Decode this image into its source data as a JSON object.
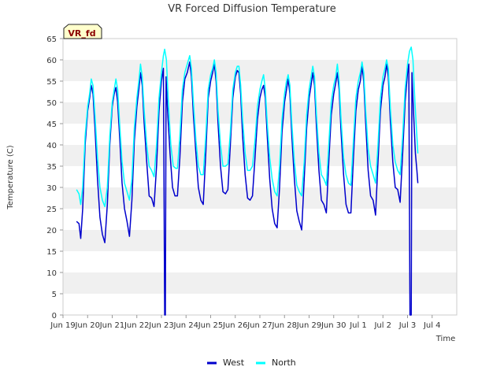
{
  "chart_data": {
    "type": "line",
    "title": "VR Forced Diffusion Temperature",
    "xlabel": "Time",
    "ylabel": "Temperature (C)",
    "badge": "VR_fd",
    "ylim": [
      0,
      65
    ],
    "xlim": [
      0,
      16
    ],
    "y_ticks": [
      0,
      5,
      10,
      15,
      20,
      25,
      30,
      35,
      40,
      45,
      50,
      55,
      60,
      65
    ],
    "x_ticks": [
      {
        "pos": 0,
        "label": "Jun 19"
      },
      {
        "pos": 1,
        "label": "Jun 20"
      },
      {
        "pos": 2,
        "label": "Jun 21"
      },
      {
        "pos": 3,
        "label": "Jun 22"
      },
      {
        "pos": 4,
        "label": "Jun 23"
      },
      {
        "pos": 5,
        "label": "Jun 24"
      },
      {
        "pos": 6,
        "label": "Jun 25"
      },
      {
        "pos": 7,
        "label": "Jun 26"
      },
      {
        "pos": 8,
        "label": "Jun 27"
      },
      {
        "pos": 9,
        "label": "Jun 28"
      },
      {
        "pos": 10,
        "label": "Jun 29"
      },
      {
        "pos": 11,
        "label": "Jun 30"
      },
      {
        "pos": 12,
        "label": "Jul 1"
      },
      {
        "pos": 13,
        "label": "Jul 2"
      },
      {
        "pos": 14,
        "label": "Jul 3"
      },
      {
        "pos": 15,
        "label": "Jul 4"
      }
    ],
    "grid": "alternating horizontal bands",
    "legend_position": "bottom-center",
    "series": [
      {
        "name": "West",
        "color": "#0000cc",
        "points": [
          [
            0.55,
            22
          ],
          [
            0.65,
            21.5
          ],
          [
            0.72,
            18
          ],
          [
            0.8,
            25
          ],
          [
            0.9,
            40
          ],
          [
            1.0,
            48
          ],
          [
            1.08,
            51
          ],
          [
            1.15,
            54
          ],
          [
            1.22,
            52
          ],
          [
            1.3,
            44
          ],
          [
            1.4,
            32
          ],
          [
            1.5,
            23
          ],
          [
            1.6,
            19
          ],
          [
            1.7,
            17
          ],
          [
            1.8,
            26
          ],
          [
            1.9,
            40
          ],
          [
            2.0,
            49
          ],
          [
            2.08,
            52
          ],
          [
            2.15,
            53.5
          ],
          [
            2.22,
            50
          ],
          [
            2.3,
            42
          ],
          [
            2.4,
            31
          ],
          [
            2.5,
            25
          ],
          [
            2.6,
            22
          ],
          [
            2.7,
            18.5
          ],
          [
            2.8,
            27
          ],
          [
            2.9,
            41
          ],
          [
            3.0,
            49
          ],
          [
            3.08,
            53
          ],
          [
            3.15,
            57
          ],
          [
            3.22,
            54
          ],
          [
            3.3,
            45
          ],
          [
            3.4,
            36
          ],
          [
            3.5,
            28
          ],
          [
            3.6,
            27.5
          ],
          [
            3.7,
            25.5
          ],
          [
            3.8,
            35
          ],
          [
            3.9,
            48
          ],
          [
            4.0,
            55
          ],
          [
            4.08,
            58
          ],
          [
            4.13,
            0
          ],
          [
            4.16,
            0
          ],
          [
            4.19,
            56
          ],
          [
            4.25,
            48
          ],
          [
            4.35,
            38
          ],
          [
            4.45,
            30
          ],
          [
            4.55,
            28
          ],
          [
            4.65,
            28
          ],
          [
            4.75,
            37
          ],
          [
            4.85,
            50
          ],
          [
            4.95,
            55.5
          ],
          [
            5.05,
            57
          ],
          [
            5.15,
            59.5
          ],
          [
            5.22,
            56
          ],
          [
            5.3,
            47
          ],
          [
            5.4,
            38
          ],
          [
            5.5,
            30
          ],
          [
            5.6,
            27
          ],
          [
            5.7,
            26
          ],
          [
            5.8,
            38
          ],
          [
            5.9,
            51
          ],
          [
            6.0,
            55
          ],
          [
            6.08,
            57
          ],
          [
            6.15,
            59
          ],
          [
            6.22,
            55
          ],
          [
            6.3,
            45
          ],
          [
            6.4,
            35
          ],
          [
            6.5,
            29
          ],
          [
            6.6,
            28.5
          ],
          [
            6.7,
            29.5
          ],
          [
            6.8,
            40
          ],
          [
            6.9,
            51
          ],
          [
            7.0,
            56
          ],
          [
            7.08,
            57.5
          ],
          [
            7.15,
            57
          ],
          [
            7.22,
            52
          ],
          [
            7.3,
            42
          ],
          [
            7.4,
            33
          ],
          [
            7.5,
            27.5
          ],
          [
            7.6,
            27
          ],
          [
            7.7,
            28
          ],
          [
            7.8,
            37
          ],
          [
            7.9,
            46
          ],
          [
            8.0,
            51
          ],
          [
            8.08,
            53
          ],
          [
            8.15,
            54
          ],
          [
            8.22,
            51
          ],
          [
            8.3,
            42
          ],
          [
            8.4,
            32
          ],
          [
            8.5,
            25
          ],
          [
            8.6,
            21.5
          ],
          [
            8.7,
            20.5
          ],
          [
            8.8,
            30
          ],
          [
            8.9,
            43
          ],
          [
            9.0,
            50
          ],
          [
            9.08,
            53
          ],
          [
            9.15,
            55.5
          ],
          [
            9.22,
            52
          ],
          [
            9.3,
            42
          ],
          [
            9.4,
            32
          ],
          [
            9.5,
            24.5
          ],
          [
            9.6,
            22
          ],
          [
            9.7,
            20
          ],
          [
            9.8,
            32
          ],
          [
            9.9,
            44
          ],
          [
            10.0,
            51
          ],
          [
            10.08,
            54
          ],
          [
            10.15,
            57
          ],
          [
            10.22,
            54
          ],
          [
            10.3,
            44
          ],
          [
            10.4,
            34
          ],
          [
            10.5,
            27
          ],
          [
            10.6,
            26
          ],
          [
            10.7,
            24
          ],
          [
            10.8,
            36
          ],
          [
            10.9,
            47
          ],
          [
            11.0,
            52
          ],
          [
            11.08,
            54.5
          ],
          [
            11.15,
            57
          ],
          [
            11.22,
            53
          ],
          [
            11.3,
            43
          ],
          [
            11.4,
            33
          ],
          [
            11.5,
            26
          ],
          [
            11.6,
            24
          ],
          [
            11.7,
            24
          ],
          [
            11.8,
            37
          ],
          [
            11.9,
            48
          ],
          [
            12.0,
            53
          ],
          [
            12.08,
            55
          ],
          [
            12.15,
            58.5
          ],
          [
            12.22,
            55
          ],
          [
            12.3,
            45
          ],
          [
            12.4,
            34
          ],
          [
            12.5,
            28
          ],
          [
            12.6,
            27
          ],
          [
            12.7,
            23.5
          ],
          [
            12.8,
            36
          ],
          [
            12.9,
            48
          ],
          [
            13.0,
            54
          ],
          [
            13.08,
            56
          ],
          [
            13.15,
            59
          ],
          [
            13.22,
            56
          ],
          [
            13.3,
            46
          ],
          [
            13.4,
            36
          ],
          [
            13.5,
            30
          ],
          [
            13.6,
            29.5
          ],
          [
            13.7,
            26.5
          ],
          [
            13.8,
            38
          ],
          [
            13.9,
            50
          ],
          [
            14.0,
            57
          ],
          [
            14.05,
            59
          ],
          [
            14.1,
            0
          ],
          [
            14.15,
            0
          ],
          [
            14.18,
            57
          ],
          [
            14.25,
            47
          ],
          [
            14.32,
            38
          ],
          [
            14.38,
            34
          ],
          [
            14.42,
            31
          ]
        ]
      },
      {
        "name": "North",
        "color": "#00ffff",
        "points": [
          [
            0.55,
            29.5
          ],
          [
            0.65,
            28.5
          ],
          [
            0.72,
            26
          ],
          [
            0.8,
            30
          ],
          [
            0.9,
            42
          ],
          [
            1.0,
            49
          ],
          [
            1.08,
            52
          ],
          [
            1.15,
            55.5
          ],
          [
            1.22,
            54
          ],
          [
            1.3,
            47
          ],
          [
            1.4,
            37
          ],
          [
            1.5,
            30
          ],
          [
            1.6,
            27
          ],
          [
            1.7,
            25.5
          ],
          [
            1.8,
            30
          ],
          [
            1.9,
            42
          ],
          [
            2.0,
            50
          ],
          [
            2.08,
            53
          ],
          [
            2.15,
            55.5
          ],
          [
            2.22,
            53
          ],
          [
            2.3,
            45
          ],
          [
            2.4,
            36
          ],
          [
            2.5,
            31
          ],
          [
            2.6,
            29
          ],
          [
            2.7,
            27
          ],
          [
            2.8,
            32
          ],
          [
            2.9,
            44
          ],
          [
            3.0,
            51
          ],
          [
            3.08,
            55
          ],
          [
            3.15,
            59
          ],
          [
            3.22,
            56
          ],
          [
            3.3,
            48
          ],
          [
            3.4,
            40
          ],
          [
            3.5,
            35
          ],
          [
            3.6,
            34
          ],
          [
            3.7,
            32.5
          ],
          [
            3.8,
            40
          ],
          [
            3.9,
            51
          ],
          [
            4.0,
            57
          ],
          [
            4.08,
            61
          ],
          [
            4.13,
            62.5
          ],
          [
            4.2,
            60
          ],
          [
            4.28,
            50
          ],
          [
            4.38,
            40
          ],
          [
            4.48,
            35
          ],
          [
            4.58,
            34.5
          ],
          [
            4.65,
            34.5
          ],
          [
            4.75,
            42
          ],
          [
            4.85,
            53
          ],
          [
            4.95,
            57
          ],
          [
            5.05,
            59
          ],
          [
            5.15,
            61
          ],
          [
            5.22,
            58
          ],
          [
            5.3,
            50
          ],
          [
            5.4,
            41
          ],
          [
            5.5,
            35
          ],
          [
            5.6,
            33
          ],
          [
            5.7,
            33
          ],
          [
            5.8,
            42
          ],
          [
            5.9,
            53
          ],
          [
            6.0,
            56.5
          ],
          [
            6.08,
            58
          ],
          [
            6.15,
            60
          ],
          [
            6.22,
            57
          ],
          [
            6.3,
            48
          ],
          [
            6.4,
            40
          ],
          [
            6.5,
            35
          ],
          [
            6.6,
            35
          ],
          [
            6.7,
            35.5
          ],
          [
            6.8,
            43
          ],
          [
            6.9,
            53
          ],
          [
            7.0,
            57
          ],
          [
            7.08,
            58.5
          ],
          [
            7.15,
            58.5
          ],
          [
            7.22,
            54
          ],
          [
            7.3,
            46
          ],
          [
            7.4,
            38
          ],
          [
            7.5,
            34
          ],
          [
            7.6,
            34
          ],
          [
            7.7,
            35
          ],
          [
            7.8,
            41
          ],
          [
            7.9,
            49
          ],
          [
            8.0,
            53
          ],
          [
            8.08,
            55
          ],
          [
            8.15,
            56.5
          ],
          [
            8.22,
            53
          ],
          [
            8.3,
            45
          ],
          [
            8.4,
            37
          ],
          [
            8.5,
            32
          ],
          [
            8.6,
            29
          ],
          [
            8.7,
            28
          ],
          [
            8.8,
            35
          ],
          [
            8.9,
            46
          ],
          [
            9.0,
            52
          ],
          [
            9.08,
            55
          ],
          [
            9.15,
            56.5
          ],
          [
            9.22,
            54
          ],
          [
            9.3,
            45
          ],
          [
            9.4,
            36
          ],
          [
            9.5,
            30.5
          ],
          [
            9.6,
            29
          ],
          [
            9.7,
            28
          ],
          [
            9.8,
            36
          ],
          [
            9.9,
            47
          ],
          [
            10.0,
            53
          ],
          [
            10.08,
            56
          ],
          [
            10.15,
            58.5
          ],
          [
            10.22,
            56
          ],
          [
            10.3,
            47
          ],
          [
            10.4,
            38
          ],
          [
            10.5,
            33
          ],
          [
            10.6,
            32
          ],
          [
            10.7,
            30.5
          ],
          [
            10.8,
            40
          ],
          [
            10.9,
            50
          ],
          [
            11.0,
            54
          ],
          [
            11.08,
            56
          ],
          [
            11.15,
            59
          ],
          [
            11.22,
            55
          ],
          [
            11.3,
            46
          ],
          [
            11.4,
            37
          ],
          [
            11.5,
            33
          ],
          [
            11.6,
            31
          ],
          [
            11.7,
            30.5
          ],
          [
            11.8,
            41
          ],
          [
            11.9,
            51
          ],
          [
            12.0,
            55
          ],
          [
            12.08,
            57
          ],
          [
            12.15,
            59.5
          ],
          [
            12.22,
            57
          ],
          [
            12.3,
            48
          ],
          [
            12.4,
            39
          ],
          [
            12.5,
            35
          ],
          [
            12.6,
            33
          ],
          [
            12.7,
            31
          ],
          [
            12.8,
            40
          ],
          [
            12.9,
            51
          ],
          [
            13.0,
            56
          ],
          [
            13.08,
            58
          ],
          [
            13.15,
            60
          ],
          [
            13.22,
            58
          ],
          [
            13.3,
            49
          ],
          [
            13.4,
            40
          ],
          [
            13.5,
            36
          ],
          [
            13.6,
            34
          ],
          [
            13.7,
            33
          ],
          [
            13.8,
            42
          ],
          [
            13.9,
            53
          ],
          [
            14.0,
            59
          ],
          [
            14.08,
            62
          ],
          [
            14.15,
            63
          ],
          [
            14.22,
            60
          ],
          [
            14.3,
            50
          ],
          [
            14.38,
            42
          ],
          [
            14.42,
            38
          ]
        ]
      }
    ]
  }
}
